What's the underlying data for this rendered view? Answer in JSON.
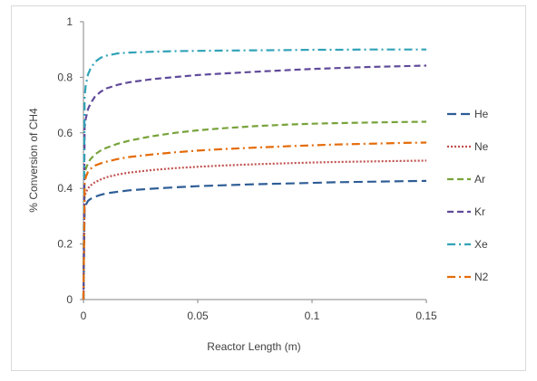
{
  "chart_data": {
    "type": "line",
    "title": "",
    "xlabel": "Reactor Length (m)",
    "ylabel": "% Conversion of CH4",
    "xlim": [
      0,
      0.15
    ],
    "ylim": [
      0,
      1
    ],
    "x_ticks": [
      0,
      0.05,
      0.1,
      0.15
    ],
    "x_tick_labels": [
      "0",
      "0.05",
      "0.1",
      "0.15"
    ],
    "y_ticks": [
      0,
      0.2,
      0.4,
      0.6,
      0.8,
      1
    ],
    "y_tick_labels": [
      "0",
      "0.2",
      "0.4",
      "0.6",
      "0.8",
      "1"
    ],
    "grid": false,
    "legend_position": "right",
    "x": [
      0,
      0.0005,
      0.001,
      0.002,
      0.003,
      0.005,
      0.0075,
      0.01,
      0.015,
      0.02,
      0.03,
      0.04,
      0.05,
      0.06,
      0.075,
      0.09,
      0.1,
      0.11,
      0.125,
      0.14,
      0.15
    ],
    "series": [
      {
        "name": "He",
        "color": "#2e5d96",
        "dash": "long-dash",
        "values": [
          0,
          0.33,
          0.34,
          0.355,
          0.362,
          0.37,
          0.377,
          0.382,
          0.388,
          0.393,
          0.399,
          0.404,
          0.408,
          0.411,
          0.415,
          0.418,
          0.42,
          0.422,
          0.424,
          0.426,
          0.427
        ]
      },
      {
        "name": "Ne",
        "color": "#c0504d",
        "dash": "dot",
        "values": [
          0,
          0.37,
          0.385,
          0.4,
          0.41,
          0.422,
          0.432,
          0.44,
          0.45,
          0.457,
          0.466,
          0.473,
          0.478,
          0.482,
          0.487,
          0.491,
          0.493,
          0.495,
          0.497,
          0.499,
          0.5
        ]
      },
      {
        "name": "Ar",
        "color": "#77a33a",
        "dash": "dash",
        "values": [
          0,
          0.45,
          0.47,
          0.49,
          0.505,
          0.522,
          0.536,
          0.546,
          0.561,
          0.572,
          0.588,
          0.6,
          0.609,
          0.616,
          0.624,
          0.63,
          0.633,
          0.635,
          0.637,
          0.639,
          0.64
        ]
      },
      {
        "name": "Kr",
        "color": "#604a9a",
        "dash": "dash",
        "values": [
          0,
          0.62,
          0.65,
          0.685,
          0.705,
          0.73,
          0.748,
          0.76,
          0.773,
          0.782,
          0.793,
          0.801,
          0.808,
          0.813,
          0.82,
          0.826,
          0.83,
          0.833,
          0.837,
          0.84,
          0.842
        ]
      },
      {
        "name": "Xe",
        "color": "#31a3b8",
        "dash": "dash-dot",
        "values": [
          0,
          0.73,
          0.77,
          0.81,
          0.83,
          0.855,
          0.87,
          0.878,
          0.886,
          0.889,
          0.892,
          0.894,
          0.895,
          0.896,
          0.897,
          0.898,
          0.899,
          0.899,
          0.9,
          0.9,
          0.9
        ]
      },
      {
        "name": "N2",
        "color": "#e46c0a",
        "dash": "dash-dot",
        "values": [
          0,
          0.42,
          0.44,
          0.46,
          0.47,
          0.482,
          0.49,
          0.496,
          0.506,
          0.513,
          0.522,
          0.53,
          0.536,
          0.541,
          0.547,
          0.552,
          0.555,
          0.558,
          0.561,
          0.564,
          0.565
        ]
      }
    ]
  }
}
